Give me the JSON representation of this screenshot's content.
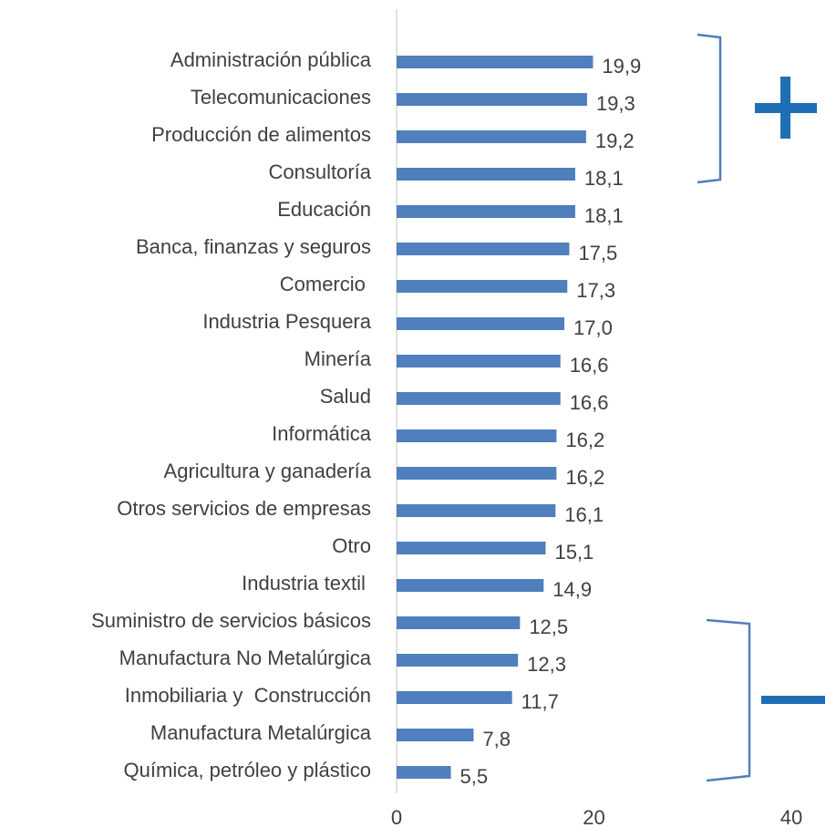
{
  "chart_data": {
    "type": "bar",
    "orientation": "horizontal",
    "categories": [
      "Administración pública",
      "Telecomunicaciones",
      "Producción de alimentos",
      "Consultoría",
      "Educación",
      "Banca, finanzas y seguros",
      "Comercio ",
      "Industria Pesquera",
      "Minería",
      "Salud",
      "Informática",
      "Agricultura y ganadería",
      "Otros servicios de empresas",
      "Otro",
      "Industria textil ",
      "Suministro de servicios básicos",
      "Manufactura No Metalúrgica",
      "Inmobiliaria y  Construcción",
      "Manufactura Metalúrgica",
      "Química, petróleo y plástico"
    ],
    "values": [
      19.9,
      19.3,
      19.2,
      18.1,
      18.1,
      17.5,
      17.3,
      17.0,
      16.6,
      16.6,
      16.2,
      16.2,
      16.1,
      15.1,
      14.9,
      12.5,
      12.3,
      11.7,
      7.8,
      5.5
    ],
    "value_labels": [
      "19,9",
      "19,3",
      "19,2",
      "18,1",
      "18,1",
      "17,5",
      "17,3",
      "17,0",
      "16,6",
      "16,6",
      "16,2",
      "16,2",
      "16,1",
      "15,1",
      "14,9",
      "12,5",
      "12,3",
      "11,7",
      "7,8",
      "5,5"
    ],
    "color": "#4f7fbc",
    "xlim": [
      0,
      40
    ],
    "xticks": [
      0,
      20,
      40
    ],
    "grid": false
  }
}
